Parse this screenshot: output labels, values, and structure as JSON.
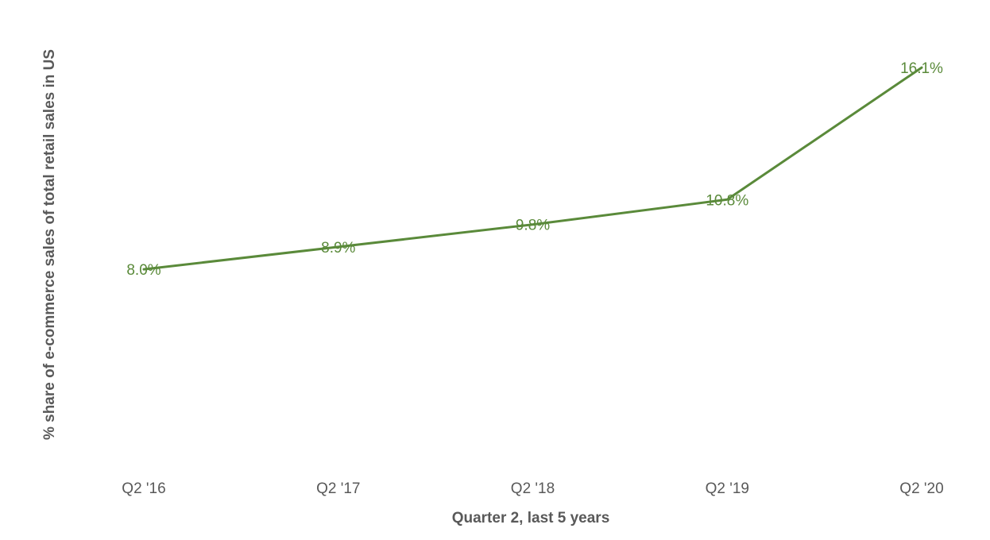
{
  "chart_data": {
    "type": "line",
    "title": "",
    "xlabel": "Quarter 2, last 5 years",
    "ylabel": "% share of e-commerce sales of total retail sales in US",
    "categories": [
      "Q2 '16",
      "Q2 '17",
      "Q2 '18",
      "Q2 '19",
      "Q2 '20"
    ],
    "series": [
      {
        "values": [
          8.0,
          8.9,
          9.8,
          10.8,
          16.1
        ],
        "data_labels": [
          "8.0%",
          "8.9%",
          "9.8%",
          "10.8%",
          "16.1%"
        ]
      }
    ],
    "ylim": [
      0,
      16.9
    ],
    "grid": false,
    "legend": "none"
  },
  "colors": {
    "line": "#5a8a3a",
    "data_label": "#5a8a3a",
    "axis_text": "#595959"
  }
}
